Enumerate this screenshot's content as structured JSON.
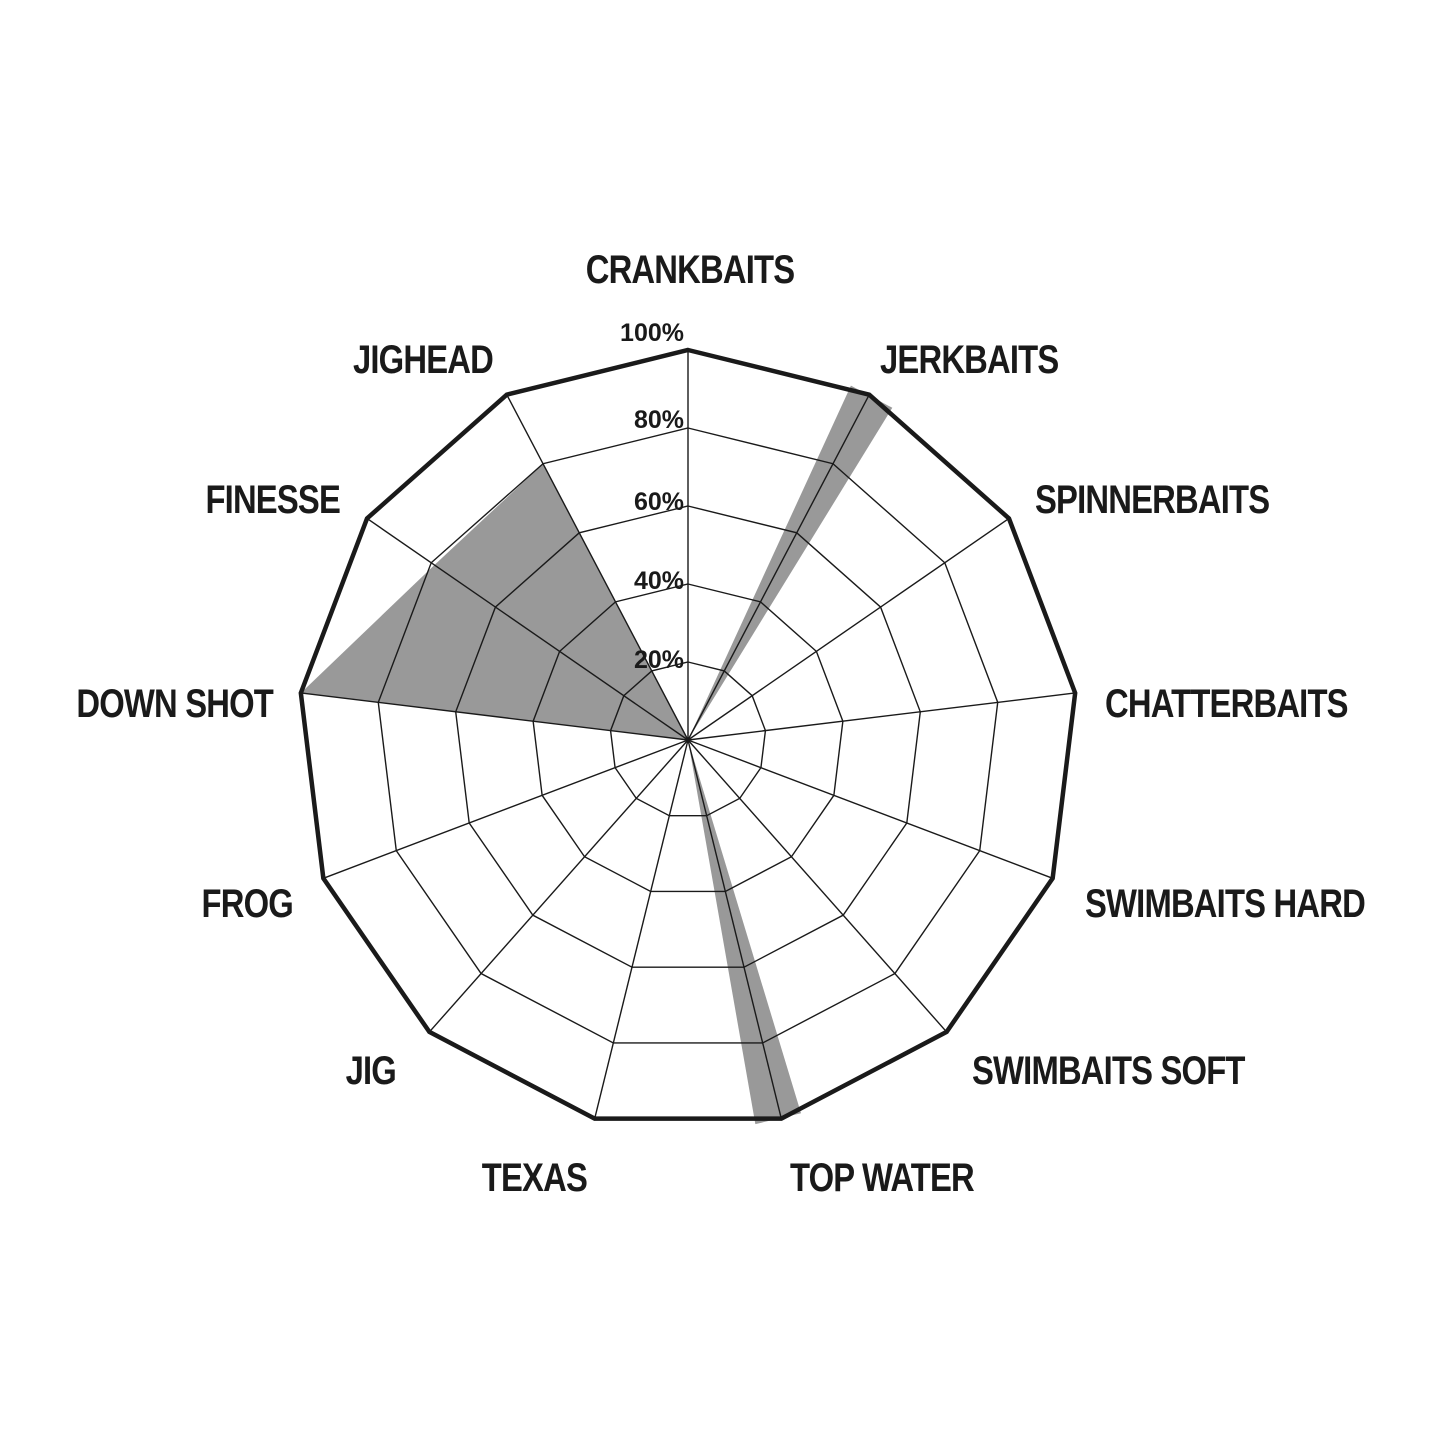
{
  "chart_data": {
    "type": "radar",
    "title": "",
    "categories": [
      "CRANKBAITS",
      "JERKBAITS",
      "SPINNERBAITS",
      "CHATTERBAITS",
      "SWIMBAITS HARD",
      "SWIMBAITS SOFT",
      "TOP WATER",
      "TEXAS",
      "JIG",
      "FROG",
      "DOWN SHOT",
      "FINESSE",
      "JIGHEAD"
    ],
    "values": [
      0,
      100,
      0,
      0,
      0,
      0,
      100,
      0,
      0,
      0,
      100,
      79,
      80
    ],
    "radial_ticks": [
      "20%",
      "40%",
      "60%",
      "80%",
      "100%"
    ],
    "rlim": [
      0,
      100
    ],
    "grid": true,
    "fill_color": "#999999",
    "grid_color": "#1a1a1a"
  }
}
